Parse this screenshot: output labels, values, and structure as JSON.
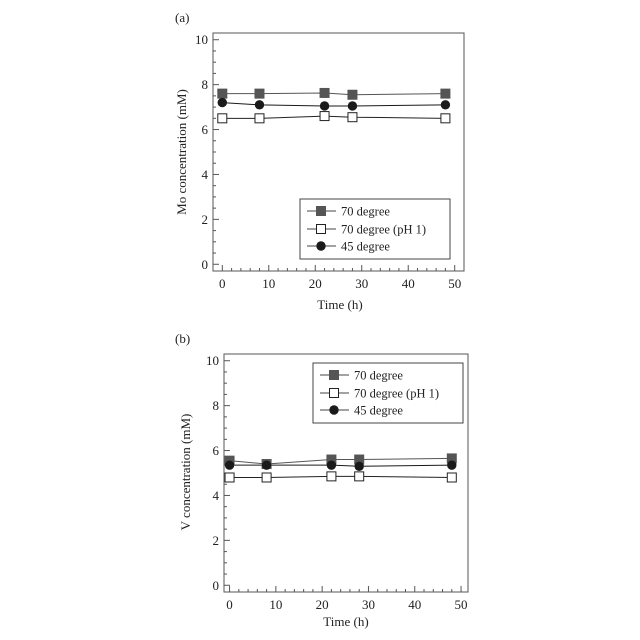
{
  "panels": [
    {
      "panel_label": "(a)",
      "chart_data": {
        "type": "line",
        "xlabel": "Time (h)",
        "ylabel": "Mo concentration (mM)",
        "xlim": [
          -2,
          52
        ],
        "ylim": [
          -0.3,
          10.3
        ],
        "xticks": [
          0,
          10,
          20,
          30,
          40,
          50
        ],
        "yticks": [
          0,
          2,
          4,
          6,
          8,
          10
        ],
        "grid": false,
        "legend_position": "bottom-right",
        "series": [
          {
            "name": "70 degree",
            "marker": "filled-square",
            "color": "#555555",
            "x": [
              0,
              8,
              22,
              28,
              48
            ],
            "y": [
              7.6,
              7.6,
              7.63,
              7.55,
              7.6
            ]
          },
          {
            "name": "70 degree (pH 1)",
            "marker": "open-square",
            "color": "#222222",
            "x": [
              0,
              8,
              22,
              28,
              48
            ],
            "y": [
              6.5,
              6.5,
              6.6,
              6.55,
              6.5
            ]
          },
          {
            "name": "45 degree",
            "marker": "filled-circle",
            "color": "#1a1a1a",
            "x": [
              0,
              8,
              22,
              28,
              48
            ],
            "y": [
              7.2,
              7.1,
              7.05,
              7.05,
              7.1
            ]
          }
        ]
      }
    },
    {
      "panel_label": "(b)",
      "chart_data": {
        "type": "line",
        "xlabel": "Time (h)",
        "ylabel": "V concentration (mM)",
        "xlim": [
          -1.2,
          51.5
        ],
        "ylim": [
          -0.3,
          10.3
        ],
        "xticks": [
          0,
          10,
          20,
          30,
          40,
          50
        ],
        "yticks": [
          0,
          2,
          4,
          6,
          8,
          10
        ],
        "grid": false,
        "legend_position": "top-right",
        "series": [
          {
            "name": "70 degree",
            "marker": "filled-square",
            "color": "#555555",
            "x": [
              0,
              8,
              22,
              28,
              48
            ],
            "y": [
              5.55,
              5.4,
              5.6,
              5.6,
              5.65
            ]
          },
          {
            "name": "70 degree (pH 1)",
            "marker": "open-square",
            "color": "#222222",
            "x": [
              0,
              8,
              22,
              28,
              48
            ],
            "y": [
              4.8,
              4.8,
              4.85,
              4.85,
              4.8
            ]
          },
          {
            "name": "45 degree",
            "marker": "filled-circle",
            "color": "#1a1a1a",
            "x": [
              0,
              8,
              22,
              28,
              48
            ],
            "y": [
              5.35,
              5.35,
              5.35,
              5.3,
              5.35
            ]
          }
        ]
      }
    }
  ]
}
